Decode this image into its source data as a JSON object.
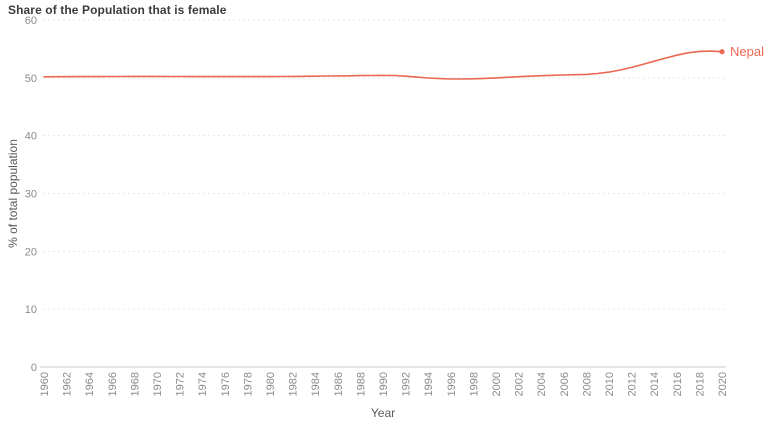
{
  "chart_data": {
    "type": "line",
    "title": "Share of the Population that is female",
    "xlabel": "Year",
    "ylabel": "% of total population",
    "xlim": [
      1960,
      2020
    ],
    "ylim": [
      0,
      60
    ],
    "yticks": [
      0,
      10,
      20,
      30,
      40,
      50,
      60
    ],
    "xticks": [
      1960,
      1962,
      1964,
      1966,
      1968,
      1970,
      1972,
      1974,
      1976,
      1978,
      1980,
      1982,
      1984,
      1986,
      1988,
      1990,
      1992,
      1994,
      1996,
      1998,
      2000,
      2002,
      2004,
      2006,
      2008,
      2010,
      2012,
      2014,
      2016,
      2018,
      2020
    ],
    "grid": "horizontal-dotted",
    "legend_position": "label-at-line-end",
    "colors": {
      "series": "#EA6852",
      "title_text": "#3B3B3B",
      "axis_text": "#8C8C8C",
      "axis_title_text": "#5A5A5A",
      "gridline": "#E5E5E5",
      "axis_line": "#CBCBCB",
      "background": "#FFFFFF"
    },
    "series": [
      {
        "name": "Nepal",
        "color": "#EA6852",
        "x": [
          1960,
          1961,
          1962,
          1963,
          1964,
          1965,
          1966,
          1967,
          1968,
          1969,
          1970,
          1971,
          1972,
          1973,
          1974,
          1975,
          1976,
          1977,
          1978,
          1979,
          1980,
          1981,
          1982,
          1983,
          1984,
          1985,
          1986,
          1987,
          1988,
          1989,
          1990,
          1991,
          1992,
          1993,
          1994,
          1995,
          1996,
          1997,
          1998,
          1999,
          2000,
          2001,
          2002,
          2003,
          2004,
          2005,
          2006,
          2007,
          2008,
          2009,
          2010,
          2011,
          2012,
          2013,
          2014,
          2015,
          2016,
          2017,
          2018,
          2019,
          2020
        ],
        "values": [
          50.18,
          50.19,
          50.2,
          50.21,
          50.22,
          50.22,
          50.23,
          50.23,
          50.24,
          50.24,
          50.24,
          50.23,
          50.23,
          50.22,
          50.22,
          50.21,
          50.21,
          50.21,
          50.21,
          50.22,
          50.22,
          50.23,
          50.25,
          50.27,
          50.29,
          50.31,
          50.33,
          50.36,
          50.38,
          50.4,
          50.42,
          50.4,
          50.28,
          50.12,
          49.97,
          49.86,
          49.8,
          49.79,
          49.83,
          49.9,
          49.99,
          50.09,
          50.19,
          50.29,
          50.37,
          50.44,
          50.49,
          50.54,
          50.6,
          50.75,
          51.0,
          51.35,
          51.81,
          52.33,
          52.88,
          53.42,
          53.92,
          54.32,
          54.57,
          54.63,
          54.52
        ]
      }
    ]
  }
}
